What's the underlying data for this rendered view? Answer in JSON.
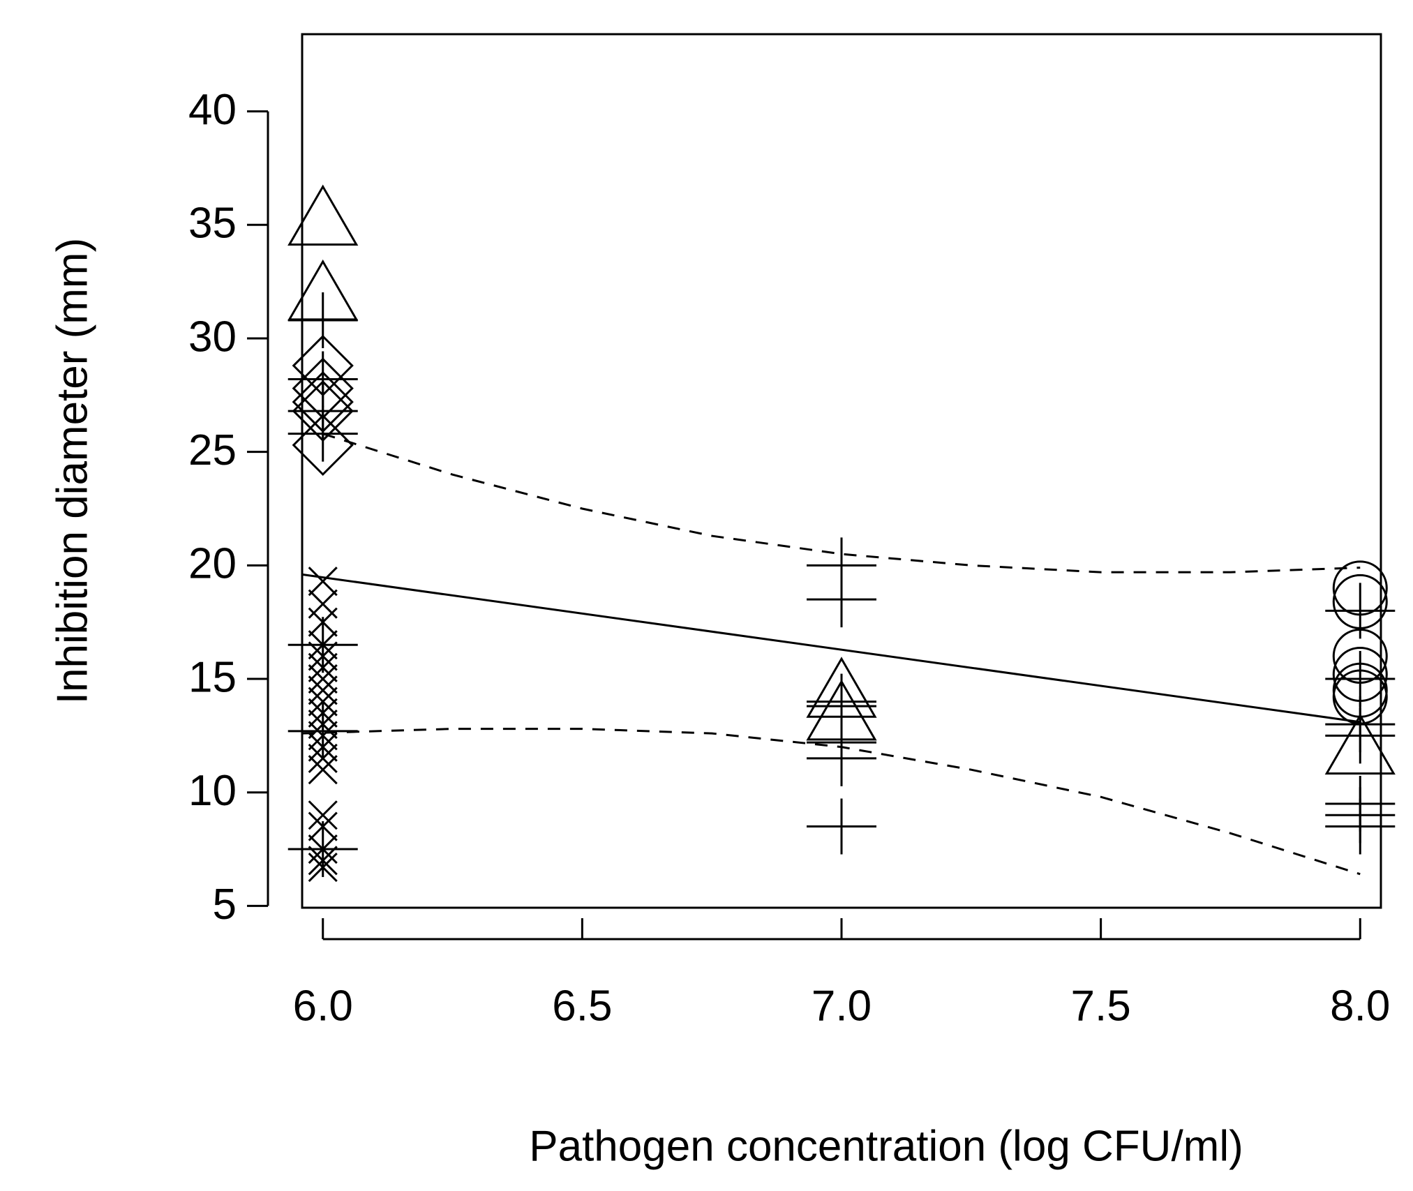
{
  "chart_data": {
    "type": "scatter",
    "x_label": "Pathogen concentration (log CFU/ml)",
    "y_label": "Inhibition diameter (mm)",
    "xlim": [
      5.96,
      8.04
    ],
    "ylim": [
      4.92,
      43.4
    ],
    "xticks": [
      {
        "value": 6,
        "label": "6.0"
      },
      {
        "value": 6.5,
        "label": "6.5"
      },
      {
        "value": 7,
        "label": "7.0"
      },
      {
        "value": 7.5,
        "label": "7.5"
      },
      {
        "value": 8,
        "label": "8.0"
      }
    ],
    "yticks": [
      5,
      10,
      15,
      20,
      25,
      30,
      35,
      40
    ],
    "series": [
      {
        "marker": "triangle",
        "color": "#000000",
        "x": [
          6,
          6,
          7,
          7,
          8
        ],
        "values": [
          35.3,
          32.0,
          14.5,
          13.5,
          12.0
        ]
      },
      {
        "marker": "diamond",
        "color": "#000000",
        "x": [
          6,
          6,
          6,
          6,
          6
        ],
        "values": [
          28.8,
          27.8,
          27.2,
          26.8,
          25.3
        ]
      },
      {
        "marker": "cross",
        "color": "#000000",
        "x": [
          6,
          6,
          6,
          6,
          6,
          6,
          6,
          6,
          6,
          6,
          6,
          6,
          6,
          6,
          6,
          6,
          6,
          6,
          6,
          6
        ],
        "values": [
          19.3,
          18.3,
          17.5,
          16.5,
          16.0,
          15.5,
          15.0,
          14.5,
          14.0,
          13.5,
          13.0,
          12.5,
          12.0,
          11.5,
          11.0,
          9.0,
          8.5,
          7.5,
          7.0,
          6.7
        ]
      },
      {
        "marker": "plus",
        "color": "#000000",
        "x": [
          6,
          6,
          6,
          6,
          6,
          6,
          6,
          7,
          7,
          7,
          7,
          7,
          7,
          7,
          8,
          8,
          8,
          8,
          8,
          8,
          8
        ],
        "values": [
          30.8,
          28.2,
          26.8,
          25.8,
          16.5,
          12.7,
          7.5,
          20.0,
          18.5,
          14.0,
          13.8,
          12.2,
          11.5,
          8.5,
          18.0,
          15.0,
          13.0,
          12.5,
          9.5,
          9.0,
          8.5
        ]
      },
      {
        "marker": "circle",
        "color": "#000000",
        "x": [
          8,
          8,
          8,
          8,
          8,
          8
        ],
        "values": [
          19.0,
          18.4,
          16.0,
          15.2,
          14.5,
          14.2
        ]
      },
      {
        "marker": "line",
        "dash": false,
        "color": "#000000",
        "x": [
          5.96,
          8.0
        ],
        "values": [
          19.6,
          13.1
        ]
      },
      {
        "marker": "line",
        "dash": true,
        "color": "#000000",
        "x": [
          6.0,
          6.25,
          6.5,
          6.75,
          7.0,
          7.25,
          7.5,
          7.75,
          8.0
        ],
        "values": [
          25.8,
          24.0,
          22.5,
          21.3,
          20.5,
          20.0,
          19.7,
          19.7,
          19.9
        ]
      },
      {
        "marker": "line",
        "dash": true,
        "color": "#000000",
        "x": [
          5.96,
          6.25,
          6.5,
          6.75,
          7.0,
          7.25,
          7.5,
          7.75,
          8.0
        ],
        "values": [
          12.6,
          12.8,
          12.8,
          12.6,
          12.0,
          11.0,
          9.8,
          8.2,
          6.4
        ]
      }
    ]
  }
}
